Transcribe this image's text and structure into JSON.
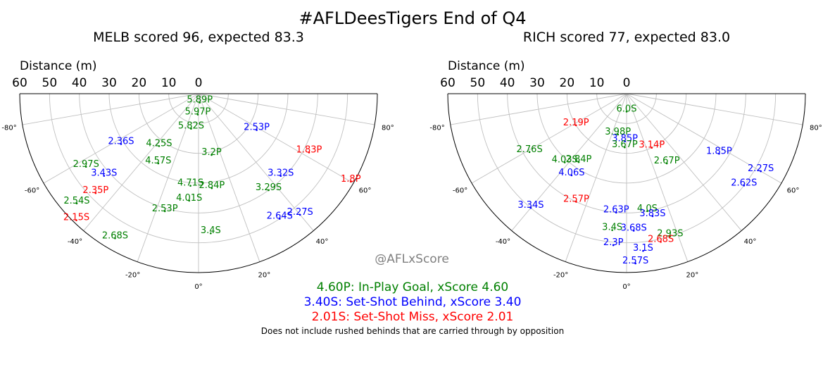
{
  "title": "#AFLDeesTigers End of Q4",
  "watermark": "@AFLxScore",
  "footnote": "Does not include rushed behinds that are carried through by opposition",
  "legend": [
    {
      "label": "4.60P: In-Play Goal, xScore 4.60",
      "color": "#008000"
    },
    {
      "label": "3.40S: Set-Shot Behind, xScore 3.40",
      "color": "#0000ff"
    },
    {
      "label": "2.01S: Set-Shot Miss, xScore 2.01",
      "color": "#ff0000"
    }
  ],
  "colors": {
    "goal": "#008000",
    "behind": "#0000ff",
    "miss": "#ff0000"
  },
  "chart_data": [
    {
      "type": "scatter",
      "projection": "polar",
      "title": "MELB scored 96, expected 83.3",
      "radial_label": "Distance (m)",
      "radial_ticks": [
        "60",
        "50",
        "40",
        "30",
        "20",
        "10",
        "0"
      ],
      "angle_ticks": [
        "-80°",
        "-60°",
        "-40°",
        "-20°",
        "0°",
        "20°",
        "40°",
        "60°",
        "80°"
      ],
      "rlim": [
        0,
        60
      ],
      "theta_range_deg": [
        -90,
        90
      ],
      "grid": true,
      "points": [
        {
          "label": "5.97P",
          "type": "goal",
          "theta": -2,
          "r": 7
        },
        {
          "label": "5.89P",
          "type": "goal",
          "theta": 8,
          "r": 3
        },
        {
          "label": "5.82S",
          "type": "goal",
          "theta": -12,
          "r": 12
        },
        {
          "label": "4.25S",
          "type": "goal",
          "theta": -37,
          "r": 22
        },
        {
          "label": "2.36S",
          "type": "behind",
          "theta": -57,
          "r": 31
        },
        {
          "label": "2.53P",
          "type": "behind",
          "theta": 58,
          "r": 23
        },
        {
          "label": "1.83P",
          "type": "miss",
          "theta": 62,
          "r": 42
        },
        {
          "label": "4.57S",
          "type": "goal",
          "theta": -30,
          "r": 27
        },
        {
          "label": "3.2P",
          "type": "goal",
          "theta": 12,
          "r": 21
        },
        {
          "label": "2.97S",
          "type": "goal",
          "theta": -57,
          "r": 45
        },
        {
          "label": "3.43S",
          "type": "behind",
          "theta": -49,
          "r": 42
        },
        {
          "label": "1.8P",
          "type": "miss",
          "theta": 60,
          "r": 59
        },
        {
          "label": "4.71S",
          "type": "goal",
          "theta": -5,
          "r": 31
        },
        {
          "label": "2.84P",
          "type": "goal",
          "theta": 8,
          "r": 32
        },
        {
          "label": "3.32S",
          "type": "behind",
          "theta": 45,
          "r": 39
        },
        {
          "label": "4.01S",
          "type": "goal",
          "theta": -5,
          "r": 36
        },
        {
          "label": "2.35P",
          "type": "miss",
          "theta": -46,
          "r": 48
        },
        {
          "label": "2.54S",
          "type": "goal",
          "theta": -48,
          "r": 55
        },
        {
          "label": "3.29S",
          "type": "goal",
          "theta": 36,
          "r": 40
        },
        {
          "label": "2.15S",
          "type": "miss",
          "theta": -44,
          "r": 59
        },
        {
          "label": "2.53P",
          "type": "goal",
          "theta": -16,
          "r": 41
        },
        {
          "label": "2.64S",
          "type": "behind",
          "theta": 33,
          "r": 50
        },
        {
          "label": "2.27S",
          "type": "behind",
          "theta": 40,
          "r": 53
        },
        {
          "label": "2.68S",
          "type": "goal",
          "theta": -30,
          "r": 56
        },
        {
          "label": "3.4S",
          "type": "goal",
          "theta": 5,
          "r": 47
        }
      ]
    },
    {
      "type": "scatter",
      "projection": "polar",
      "title": "RICH scored 77, expected 83.0",
      "radial_label": "Distance (m)",
      "radial_ticks": [
        "60",
        "50",
        "40",
        "30",
        "20",
        "10",
        "0"
      ],
      "angle_ticks": [
        "-80°",
        "-60°",
        "-40°",
        "-20°",
        "0°",
        "20°",
        "40°",
        "60°",
        "80°"
      ],
      "rlim": [
        0,
        60
      ],
      "theta_range_deg": [
        -90,
        90
      ],
      "grid": true,
      "points": [
        {
          "label": "2.19P",
          "type": "miss",
          "theta": -58,
          "r": 20
        },
        {
          "label": "6.0S",
          "type": "goal",
          "theta": 0,
          "r": 6
        },
        {
          "label": "1.85P",
          "type": "behind",
          "theta": 57,
          "r": 37
        },
        {
          "label": "3.98P",
          "type": "goal",
          "theta": -12,
          "r": 14
        },
        {
          "label": "3.85P",
          "type": "behind",
          "theta": -2,
          "r": 16
        },
        {
          "label": "3.14P",
          "type": "miss",
          "theta": 25,
          "r": 20
        },
        {
          "label": "2.76S",
          "type": "goal",
          "theta": -59,
          "r": 38
        },
        {
          "label": "3.67P",
          "type": "goal",
          "theta": -2,
          "r": 18
        },
        {
          "label": "4.03S",
          "type": "goal",
          "theta": -42,
          "r": 31
        },
        {
          "label": "2.67P",
          "type": "goal",
          "theta": 30,
          "r": 27
        },
        {
          "label": "2.84P",
          "type": "goal",
          "theta": -35,
          "r": 28
        },
        {
          "label": "2.27S",
          "type": "behind",
          "theta": 60,
          "r": 52
        },
        {
          "label": "4.06S",
          "type": "behind",
          "theta": -34,
          "r": 33
        },
        {
          "label": "2.62S",
          "type": "behind",
          "theta": 52,
          "r": 50
        },
        {
          "label": "3.34S",
          "type": "behind",
          "theta": -40,
          "r": 50
        },
        {
          "label": "2.57P",
          "type": "miss",
          "theta": -25,
          "r": 40
        },
        {
          "label": "2.63P",
          "type": "behind",
          "theta": -5,
          "r": 40
        },
        {
          "label": "4.0S",
          "type": "goal",
          "theta": 10,
          "r": 40
        },
        {
          "label": "3.83S",
          "type": "behind",
          "theta": 12,
          "r": 42
        },
        {
          "label": "3.4S",
          "type": "goal",
          "theta": -6,
          "r": 46
        },
        {
          "label": "3.68S",
          "type": "behind",
          "theta": 3,
          "r": 46
        },
        {
          "label": "2.93S",
          "type": "goal",
          "theta": 17,
          "r": 50
        },
        {
          "label": "2.3P",
          "type": "behind",
          "theta": -5,
          "r": 51
        },
        {
          "label": "3.1S",
          "type": "behind",
          "theta": 6,
          "r": 53
        },
        {
          "label": "2.68S",
          "type": "miss",
          "theta": 13,
          "r": 51
        },
        {
          "label": "2.57S",
          "type": "behind",
          "theta": 3,
          "r": 57
        }
      ]
    }
  ]
}
